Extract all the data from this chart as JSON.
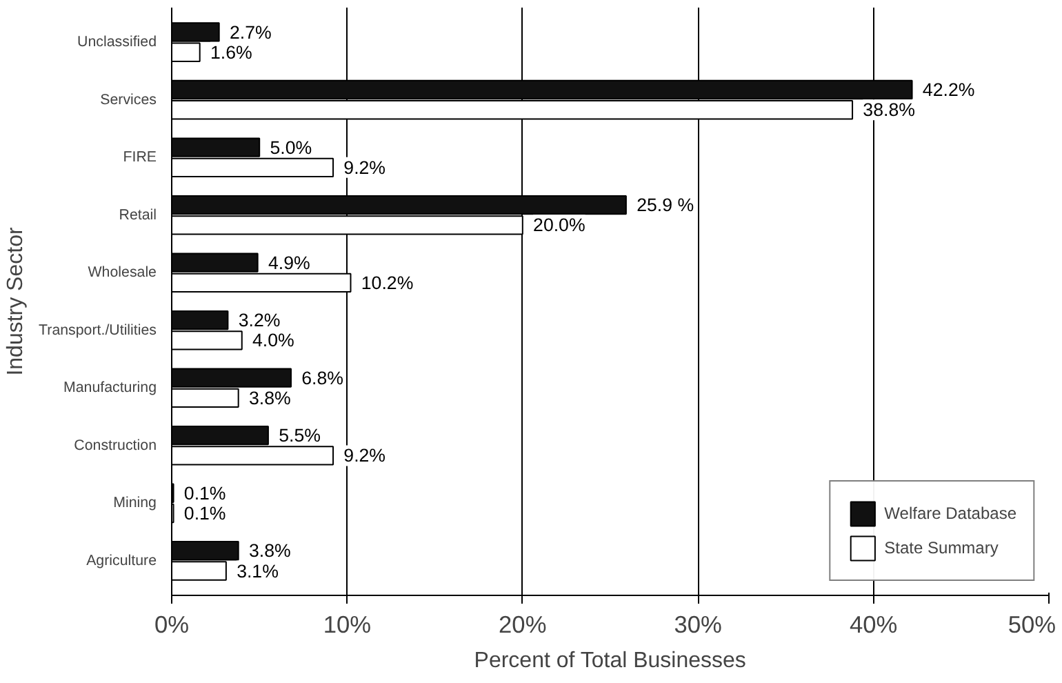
{
  "chart_data": {
    "type": "bar",
    "orientation": "horizontal",
    "xlabel": "Percent of Total Businesses",
    "ylabel": "Industry Sector",
    "categories": [
      "Unclassified",
      "Services",
      "FIRE",
      "Retail",
      "Wholesale",
      "Transport./Utilities",
      "Manufacturing",
      "Construction",
      "Mining",
      "Agriculture"
    ],
    "series": [
      {
        "name": "Welfare Database",
        "color": "#111111",
        "values": [
          2.7,
          42.2,
          5.0,
          25.9,
          4.9,
          3.2,
          6.8,
          5.5,
          0.1,
          3.8
        ],
        "value_labels": [
          "2.7%",
          "42.2%",
          "5.0%",
          "25.9 %",
          "4.9%",
          "3.2%",
          "6.8%",
          "5.5%",
          "0.1%",
          "3.8%"
        ]
      },
      {
        "name": "State Summary",
        "color": "#ffffff",
        "values": [
          1.6,
          38.8,
          9.2,
          20.0,
          10.2,
          4.0,
          3.8,
          9.2,
          0.1,
          3.1
        ],
        "value_labels": [
          "1.6%",
          "38.8%",
          "9.2%",
          "20.0%",
          "10.2%",
          "4.0%",
          "3.8%",
          "9.2%",
          "0.1%",
          "3.1%"
        ]
      }
    ],
    "xlim": [
      0,
      50
    ],
    "xticks": [
      {
        "value": 0,
        "label": "0%"
      },
      {
        "value": 10,
        "label": "10%"
      },
      {
        "value": 20,
        "label": "20%"
      },
      {
        "value": 30,
        "label": "30%"
      },
      {
        "value": 40,
        "label": "40%"
      },
      {
        "value": 50,
        "label": "50%"
      }
    ],
    "grid": "x",
    "legend": "bottom right"
  }
}
